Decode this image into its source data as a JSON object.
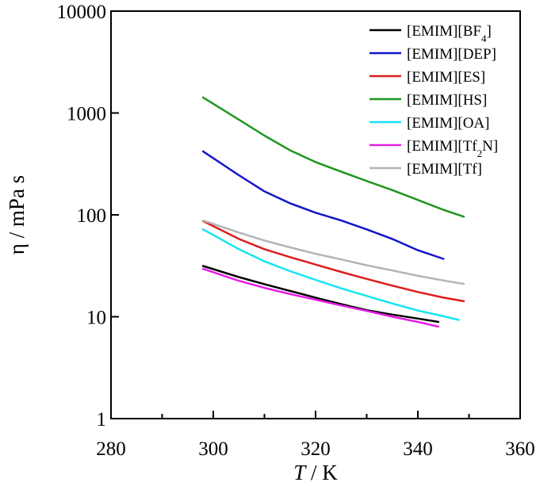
{
  "chart_data": {
    "type": "line",
    "title": "",
    "xlabel_italic": "T",
    "xlabel_unit": " / K",
    "ylabel": "η / mPa s",
    "xlim": [
      280,
      360
    ],
    "ylim": [
      1,
      10000
    ],
    "yscale": "log",
    "x_ticks": [
      280,
      300,
      320,
      340,
      360
    ],
    "x_tick_labels": [
      "280",
      "300",
      "320",
      "340",
      "360"
    ],
    "y_ticks": [
      1,
      10,
      100,
      1000,
      10000
    ],
    "y_tick_labels": [
      "1",
      "10",
      "100",
      "1000",
      "10000"
    ],
    "grid": false,
    "legend_position": "top-right",
    "series": [
      {
        "name": "[EMIM][BF4]",
        "legend_main": "[EMIM][BF",
        "legend_sub": "4",
        "legend_tail": "]",
        "color": "#000000",
        "x": [
          298,
          305,
          310,
          315,
          320,
          325,
          330,
          335,
          340,
          344
        ],
        "y": [
          31.5,
          24.5,
          20.9,
          17.9,
          15.4,
          13.3,
          11.6,
          10.5,
          9.6,
          8.9
        ]
      },
      {
        "name": "[EMIM][DEP]",
        "legend_main": "[EMIM][DEP]",
        "legend_sub": "",
        "legend_tail": "",
        "color": "#1414c8",
        "x": [
          298,
          305,
          310,
          315,
          320,
          325,
          330,
          335,
          340,
          345
        ],
        "y": [
          420,
          245,
          170,
          130,
          105,
          88,
          72,
          58,
          45,
          37
        ]
      },
      {
        "name": "[EMIM][ES]",
        "legend_main": "[EMIM][ES]",
        "legend_sub": "",
        "legend_tail": "",
        "color": "#dc1e1e",
        "x": [
          298,
          305,
          310,
          315,
          320,
          325,
          330,
          335,
          340,
          345,
          349
        ],
        "y": [
          87,
          58,
          46,
          38.5,
          32.5,
          27.5,
          23.5,
          20.2,
          17.5,
          15.4,
          14.2
        ]
      },
      {
        "name": "[EMIM][HS]",
        "legend_main": "[EMIM][HS]",
        "legend_sub": "",
        "legend_tail": "",
        "color": "#1e961e",
        "x": [
          298,
          305,
          310,
          315,
          320,
          325,
          330,
          335,
          340,
          345,
          349
        ],
        "y": [
          1420,
          860,
          600,
          430,
          330,
          265,
          215,
          175,
          140,
          112,
          96
        ]
      },
      {
        "name": "[EMIM][OA]",
        "legend_main": "[EMIM][OA]",
        "legend_sub": "",
        "legend_tail": "",
        "color": "#14e6f0",
        "x": [
          298,
          305,
          310,
          315,
          320,
          325,
          330,
          335,
          340,
          345,
          348
        ],
        "y": [
          72,
          46,
          35,
          28,
          23,
          19,
          16,
          13.5,
          11.5,
          10.1,
          9.3
        ]
      },
      {
        "name": "[EMIM][Tf2N]",
        "legend_main": "[EMIM][Tf",
        "legend_sub": "2",
        "legend_tail": "N]",
        "color": "#e61ee6",
        "x": [
          298,
          305,
          310,
          315,
          320,
          325,
          330,
          335,
          340,
          344
        ],
        "y": [
          29.5,
          22.5,
          19.2,
          16.7,
          14.7,
          12.9,
          11.4,
          10.0,
          8.9,
          8.0
        ]
      },
      {
        "name": "[EMIM][Tf]",
        "legend_main": "[EMIM][Tf]",
        "legend_sub": "",
        "legend_tail": "",
        "color": "#b4b4b4",
        "x": [
          298,
          305,
          310,
          315,
          320,
          325,
          330,
          335,
          340,
          345,
          349
        ],
        "y": [
          88,
          67,
          56,
          48,
          41.5,
          36.5,
          32,
          28.5,
          25.2,
          22.7,
          21
        ]
      }
    ]
  }
}
